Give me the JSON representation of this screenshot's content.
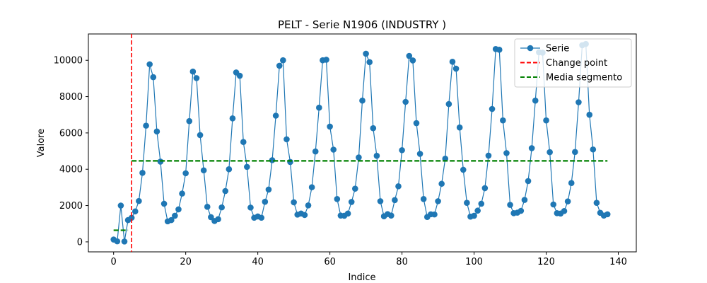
{
  "chart_data": {
    "type": "line",
    "title": "PELT - Serie N1906 (INDUSTRY    )",
    "xlabel": "Indice",
    "ylabel": "Valore",
    "xlim": [
      -7,
      145
    ],
    "ylim": [
      -550,
      11450
    ],
    "xticks": [
      0,
      20,
      40,
      60,
      80,
      100,
      120,
      140
    ],
    "yticks": [
      0,
      2000,
      4000,
      6000,
      8000,
      10000
    ],
    "grid": false,
    "legend_position": "top-right",
    "series": [
      {
        "name": "Serie",
        "color": "#1f77b4",
        "x": [
          0,
          1,
          2,
          3,
          4,
          5,
          6,
          7,
          8,
          9,
          10,
          11,
          12,
          13,
          14,
          15,
          16,
          17,
          18,
          19,
          20,
          21,
          22,
          23,
          24,
          25,
          26,
          27,
          28,
          29,
          30,
          31,
          32,
          33,
          34,
          35,
          36,
          37,
          38,
          39,
          40,
          41,
          42,
          43,
          44,
          45,
          46,
          47,
          48,
          49,
          50,
          51,
          52,
          53,
          54,
          55,
          56,
          57,
          58,
          59,
          60,
          61,
          62,
          63,
          64,
          65,
          66,
          67,
          68,
          69,
          70,
          71,
          72,
          73,
          74,
          75,
          76,
          77,
          78,
          79,
          80,
          81,
          82,
          83,
          84,
          85,
          86,
          87,
          88,
          89,
          90,
          91,
          92,
          93,
          94,
          95,
          96,
          97,
          98,
          99,
          100,
          101,
          102,
          103,
          104,
          105,
          106,
          107,
          108,
          109,
          110,
          111,
          112,
          113,
          114,
          115,
          116,
          117,
          118,
          119,
          120,
          121,
          122,
          123,
          124,
          125,
          126,
          127,
          128,
          129,
          130,
          131,
          132,
          133,
          134,
          135,
          136,
          137
        ],
        "y": [
          130,
          30,
          2000,
          20,
          1200,
          1330,
          1680,
          2250,
          3800,
          6400,
          9780,
          9070,
          6080,
          4420,
          2100,
          1130,
          1200,
          1440,
          1790,
          2660,
          3780,
          6650,
          9380,
          9020,
          5880,
          3940,
          1930,
          1360,
          1150,
          1250,
          1900,
          2800,
          4000,
          6800,
          9330,
          9150,
          5500,
          4130,
          1890,
          1330,
          1400,
          1330,
          2210,
          2880,
          4500,
          6950,
          9700,
          10000,
          5650,
          4400,
          2180,
          1500,
          1560,
          1480,
          2010,
          3010,
          4980,
          7390,
          10000,
          10030,
          6350,
          5080,
          2360,
          1450,
          1440,
          1560,
          2200,
          2930,
          4650,
          7780,
          10360,
          9900,
          6260,
          4740,
          2240,
          1410,
          1530,
          1450,
          2300,
          3060,
          5050,
          7710,
          10240,
          9990,
          6540,
          4850,
          2360,
          1370,
          1520,
          1510,
          2240,
          3200,
          4580,
          7590,
          9920,
          9540,
          6300,
          3970,
          2150,
          1390,
          1440,
          1720,
          2100,
          2960,
          4750,
          7320,
          10620,
          10580,
          6690,
          4890,
          2040,
          1580,
          1610,
          1710,
          2310,
          3350,
          5160,
          7780,
          10440,
          10420,
          6690,
          4940,
          2060,
          1580,
          1560,
          1700,
          2230,
          3240,
          4950,
          7690,
          10830,
          10900,
          7000,
          5090,
          2150,
          1600,
          1450,
          1520
        ]
      }
    ],
    "change_points": [
      {
        "name": "Change point",
        "x": 5,
        "color": "#d62728"
      }
    ],
    "segment_means": [
      {
        "name": "Media segmento",
        "x_start": 0,
        "x_end": 4,
        "value": 640,
        "color": "#008000"
      },
      {
        "name": "Media segmento",
        "x_start": 5,
        "x_end": 137,
        "value": 4460,
        "color": "#008000"
      }
    ],
    "legend": [
      {
        "label": "Serie",
        "kind": "line-marker",
        "color": "#1f77b4"
      },
      {
        "label": "Change point",
        "kind": "dashed",
        "color": "#ff0000"
      },
      {
        "label": "Media segmento",
        "kind": "dashed",
        "color": "#008000"
      }
    ]
  }
}
